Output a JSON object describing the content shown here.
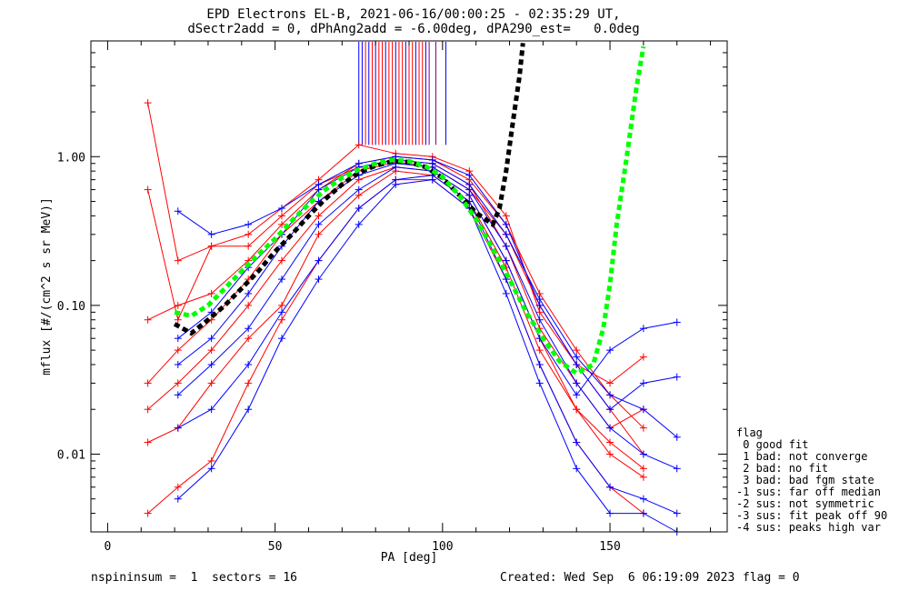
{
  "header": {
    "title_line1": "EPD Electrons EL-B, 2021-06-16/00:00:25 - 02:35:29 UT,",
    "title_line2": "dSectr2add = 0, dPhAng2add = -6.00deg, dPA290_est=   0.0deg"
  },
  "footer": {
    "left": "nspininsum =  1  sectors = 16",
    "created": "Created: Wed Sep  6 06:19:09 2023",
    "flag": "flag = 0"
  },
  "legend": {
    "title": "flag",
    "items": [
      " 0 good fit",
      " 1 bad: not converge",
      " 2 bad: no fit",
      " 3 bad: bad fgm state",
      "-1 sus: far off median",
      "-2 sus: not symmetric",
      "-3 sus: fit peak off 90",
      "-4 sus: peaks high var"
    ]
  },
  "chart_data": {
    "type": "line",
    "xlabel": "PA [deg]",
    "ylabel": "mflux [#/(cm^2 s sr MeV)]",
    "xlim": [
      -5,
      185
    ],
    "ylim": [
      0.003,
      6
    ],
    "yscale": "log",
    "xticks": [
      0,
      50,
      100,
      150
    ],
    "yticks": [
      0.01,
      0.1,
      1.0
    ],
    "ytick_labels": [
      "0.01",
      "0.10",
      "1.00"
    ],
    "colors": {
      "red": "#ff0000",
      "blue": "#0000ff",
      "black": "#000000",
      "green": "#00ff00"
    },
    "series": [
      {
        "color": "red",
        "x": [
          12,
          21,
          31,
          42,
          52,
          63,
          75,
          86,
          97,
          108,
          119,
          129,
          140,
          150,
          160
        ],
        "y": [
          0.03,
          0.05,
          0.08,
          0.15,
          0.3,
          0.5,
          0.8,
          0.92,
          0.85,
          0.6,
          0.3,
          0.1,
          0.04,
          0.02,
          0.01
        ]
      },
      {
        "color": "red",
        "x": [
          12,
          21,
          31,
          42,
          52,
          63,
          75,
          86,
          97,
          108,
          119,
          129,
          140,
          150,
          160
        ],
        "y": [
          2.3,
          0.2,
          0.25,
          0.3,
          0.45,
          0.7,
          1.2,
          1.05,
          1.0,
          0.8,
          0.4,
          0.09,
          0.04,
          0.03,
          0.045
        ]
      },
      {
        "color": "red",
        "x": [
          12,
          21,
          31,
          42,
          52,
          63,
          75,
          86,
          97,
          108,
          119,
          129,
          140,
          150,
          160
        ],
        "y": [
          0.012,
          0.015,
          0.03,
          0.06,
          0.1,
          0.3,
          0.55,
          0.8,
          0.75,
          0.5,
          0.18,
          0.05,
          0.02,
          0.012,
          0.008
        ]
      },
      {
        "color": "red",
        "x": [
          12,
          21,
          31,
          42,
          52,
          63,
          75,
          86,
          97,
          108,
          119,
          129,
          140,
          150,
          160
        ],
        "y": [
          0.08,
          0.1,
          0.12,
          0.2,
          0.35,
          0.6,
          0.9,
          1.0,
          0.95,
          0.7,
          0.35,
          0.12,
          0.05,
          0.025,
          0.015
        ]
      },
      {
        "color": "red",
        "x": [
          12,
          21,
          31,
          42,
          52,
          63,
          75,
          86,
          97,
          108,
          119,
          129,
          140,
          150,
          160
        ],
        "y": [
          0.004,
          0.006,
          0.009,
          0.03,
          0.08,
          0.2,
          0.45,
          0.7,
          0.7,
          0.45,
          0.15,
          0.04,
          0.012,
          0.006,
          0.004
        ]
      },
      {
        "color": "red",
        "x": [
          12,
          21,
          31,
          42,
          52,
          63,
          75,
          86,
          97,
          108,
          119,
          129,
          140,
          150,
          160
        ],
        "y": [
          0.6,
          0.08,
          0.25,
          0.25,
          0.4,
          0.65,
          0.85,
          0.95,
          0.9,
          0.65,
          0.25,
          0.07,
          0.03,
          0.015,
          0.02
        ]
      },
      {
        "color": "red",
        "x": [
          12,
          21,
          31,
          42,
          52,
          63,
          75,
          86,
          97,
          108,
          119,
          129,
          140,
          150,
          160
        ],
        "y": [
          0.02,
          0.03,
          0.05,
          0.1,
          0.2,
          0.4,
          0.7,
          0.85,
          0.8,
          0.55,
          0.2,
          0.06,
          0.02,
          0.01,
          0.007
        ]
      },
      {
        "color": "blue",
        "x": [
          21,
          31,
          42,
          52,
          63,
          75,
          86,
          97,
          108,
          119,
          129,
          140,
          150,
          160,
          170
        ],
        "y": [
          0.04,
          0.06,
          0.12,
          0.25,
          0.5,
          0.75,
          0.9,
          0.85,
          0.6,
          0.25,
          0.08,
          0.03,
          0.015,
          0.01,
          0.008
        ]
      },
      {
        "color": "blue",
        "x": [
          21,
          31,
          42,
          52,
          63,
          75,
          86,
          97,
          108,
          119,
          129,
          140,
          150,
          160,
          170
        ],
        "y": [
          0.43,
          0.3,
          0.35,
          0.45,
          0.65,
          0.9,
          1.0,
          0.95,
          0.75,
          0.35,
          0.1,
          0.04,
          0.02,
          0.03,
          0.033
        ]
      },
      {
        "color": "blue",
        "x": [
          21,
          31,
          42,
          52,
          63,
          75,
          86,
          97,
          108,
          119,
          129,
          140,
          150,
          160,
          170
        ],
        "y": [
          0.015,
          0.02,
          0.04,
          0.09,
          0.2,
          0.45,
          0.7,
          0.75,
          0.5,
          0.15,
          0.04,
          0.012,
          0.006,
          0.005,
          0.004
        ]
      },
      {
        "color": "blue",
        "x": [
          21,
          31,
          42,
          52,
          63,
          75,
          86,
          97,
          108,
          119,
          129,
          140,
          150,
          160,
          170
        ],
        "y": [
          0.025,
          0.04,
          0.07,
          0.15,
          0.35,
          0.6,
          0.85,
          0.8,
          0.55,
          0.2,
          0.06,
          0.025,
          0.05,
          0.07,
          0.077
        ]
      },
      {
        "color": "blue",
        "x": [
          21,
          31,
          42,
          52,
          63,
          75,
          86,
          97,
          108,
          119,
          129,
          140,
          150,
          160,
          170
        ],
        "y": [
          0.005,
          0.008,
          0.02,
          0.06,
          0.15,
          0.35,
          0.65,
          0.7,
          0.45,
          0.12,
          0.03,
          0.008,
          0.004,
          0.004,
          0.003
        ]
      },
      {
        "color": "blue",
        "x": [
          21,
          31,
          42,
          52,
          63,
          75,
          86,
          97,
          108,
          119,
          129,
          140,
          150,
          160,
          170
        ],
        "y": [
          0.06,
          0.09,
          0.18,
          0.3,
          0.6,
          0.85,
          0.95,
          0.9,
          0.65,
          0.3,
          0.11,
          0.045,
          0.025,
          0.02,
          0.013
        ]
      }
    ],
    "black_curve": {
      "x": [
        20,
        25,
        30,
        35,
        40,
        45,
        50,
        55,
        60,
        65,
        70,
        75,
        80,
        85,
        90,
        95,
        100,
        105,
        110,
        115,
        117,
        119,
        121,
        123,
        124
      ],
      "y": [
        0.075,
        0.065,
        0.08,
        0.1,
        0.13,
        0.17,
        0.23,
        0.3,
        0.4,
        0.52,
        0.65,
        0.78,
        0.87,
        0.93,
        0.92,
        0.85,
        0.72,
        0.55,
        0.42,
        0.35,
        0.45,
        0.8,
        1.7,
        3.5,
        5.8
      ]
    },
    "green_curve": {
      "x": [
        20,
        25,
        30,
        35,
        40,
        45,
        50,
        55,
        60,
        65,
        70,
        75,
        80,
        85,
        90,
        95,
        100,
        105,
        110,
        115,
        120,
        125,
        130,
        135,
        140,
        145,
        148,
        150,
        152,
        155,
        158,
        160
      ],
      "y": [
        0.09,
        0.085,
        0.1,
        0.13,
        0.17,
        0.22,
        0.28,
        0.37,
        0.48,
        0.6,
        0.72,
        0.82,
        0.9,
        0.95,
        0.93,
        0.86,
        0.73,
        0.55,
        0.38,
        0.24,
        0.15,
        0.09,
        0.06,
        0.042,
        0.035,
        0.04,
        0.07,
        0.14,
        0.35,
        1.0,
        3.0,
        5.5
      ]
    },
    "vlines": [
      {
        "color": "blue",
        "x": [
          75,
          76,
          78,
          80,
          83,
          86,
          89,
          92,
          95,
          101
        ]
      },
      {
        "color": "red",
        "x": [
          77,
          79,
          81,
          82,
          84,
          85,
          87,
          88,
          90,
          91,
          93,
          94
        ]
      },
      {
        "color": "purple",
        "x": [
          96,
          98
        ]
      }
    ]
  }
}
